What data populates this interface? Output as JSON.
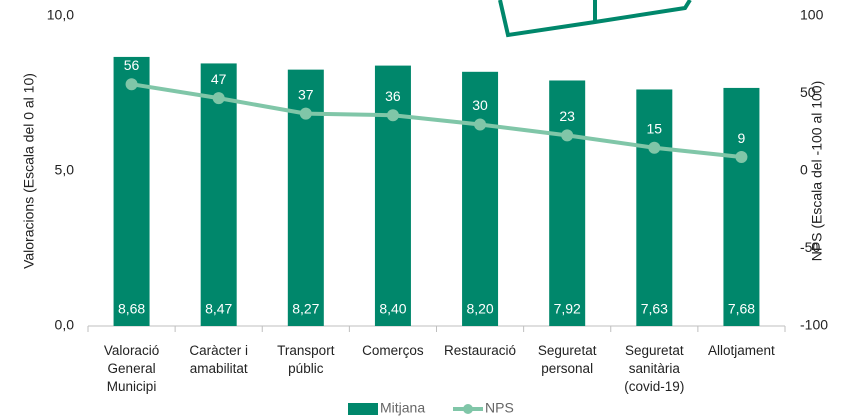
{
  "chart_data": {
    "type": "bar",
    "categories": [
      "Valoració General Municipi",
      "Caràcter i amabilitat",
      "Transport públic",
      "Comerços",
      "Restauració",
      "Seguretat personal",
      "Seguretat sanitària (covid-19)",
      "Allotjament"
    ],
    "series": [
      {
        "name": "Mitjana",
        "type": "bar",
        "color": "#00876b",
        "axis": "y",
        "values": [
          8.68,
          8.47,
          8.27,
          8.4,
          8.2,
          7.92,
          7.63,
          7.68
        ],
        "value_labels": [
          "8,68",
          "8,47",
          "8,27",
          "8,40",
          "8,20",
          "7,92",
          "7,63",
          "7,68"
        ]
      },
      {
        "name": "NPS",
        "type": "line",
        "color": "#80c6a8",
        "axis": "y2",
        "values": [
          56,
          47,
          37,
          36,
          30,
          23,
          15,
          9
        ]
      }
    ],
    "ylabel": "Valoracions (Escala  del 0 al 10)",
    "y2label": "NPS (Escala  del -100 al 100)",
    "ylim": [
      0,
      10
    ],
    "yticks": [
      {
        "value": 0,
        "label": "0,0"
      },
      {
        "value": 5,
        "label": "5,0"
      },
      {
        "value": 10,
        "label": "10,0"
      }
    ],
    "y2lim": [
      -100,
      100
    ],
    "y2ticks": [
      -100,
      -50,
      0,
      50,
      100
    ],
    "legend": "bottom"
  }
}
